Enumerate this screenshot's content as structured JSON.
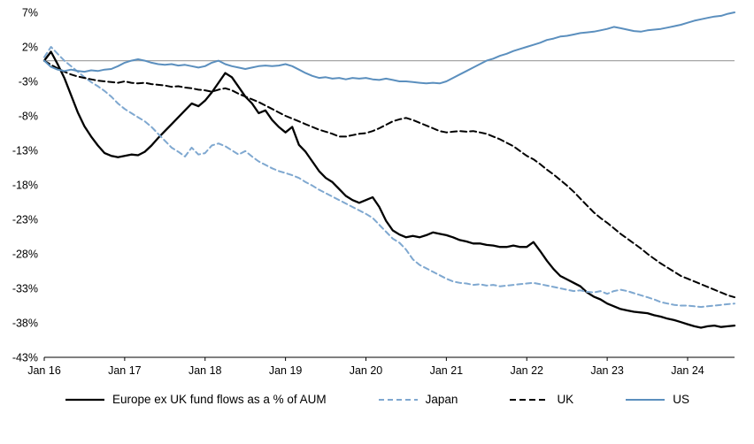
{
  "chart_data": {
    "type": "line",
    "title": "",
    "xlabel": "",
    "ylabel": "",
    "ylim": [
      -43,
      7
    ],
    "grid": "zero-line-only",
    "legend_position": "bottom",
    "zero_line_value": 0,
    "zero_line_color": "#a6a6a6",
    "axis_color": "#000000",
    "ytick_values": [
      7,
      2,
      -3,
      -8,
      -13,
      -18,
      -23,
      -28,
      -33,
      -38,
      -43
    ],
    "ytick_labels": [
      "7%",
      "2%",
      "-3%",
      "-8%",
      "-13%",
      "-18%",
      "-23%",
      "-28%",
      "-33%",
      "-38%",
      "-43%"
    ],
    "x_unit": "months since Jan 2016",
    "x_max": 103,
    "xtick_months": [
      0,
      12,
      24,
      36,
      48,
      60,
      72,
      84,
      96
    ],
    "xtick_labels": [
      "Jan 16",
      "Jan 17",
      "Jan 18",
      "Jan 19",
      "Jan 20",
      "Jan 21",
      "Jan 22",
      "Jan 23",
      "Jan 24"
    ],
    "series": [
      {
        "key": "europe-ex-uk",
        "name": "Europe ex UK fund flows as a % of AUM",
        "color": "#000000",
        "dash": null,
        "width": 2.3,
        "values": [
          0,
          1.3,
          -0.5,
          -2.5,
          -5,
          -7.5,
          -9.5,
          -11,
          -12.3,
          -13.4,
          -13.8,
          -14,
          -13.8,
          -13.6,
          -13.7,
          -13.2,
          -12.3,
          -11.2,
          -10.2,
          -9.2,
          -8.2,
          -7.2,
          -6.2,
          -6.6,
          -5.8,
          -4.6,
          -3.2,
          -1.8,
          -2.4,
          -3.8,
          -5.2,
          -6.2,
          -7.6,
          -7.2,
          -8.6,
          -9.6,
          -10.4,
          -9.6,
          -12.2,
          -13.2,
          -14.6,
          -16,
          -17,
          -17.6,
          -18.6,
          -19.6,
          -20.2,
          -20.6,
          -20.2,
          -19.8,
          -21.2,
          -23.2,
          -24.6,
          -25.2,
          -25.6,
          -25.4,
          -25.6,
          -25.3,
          -24.9,
          -25.1,
          -25.3,
          -25.6,
          -26,
          -26.2,
          -26.5,
          -26.5,
          -26.7,
          -26.8,
          -27,
          -27,
          -26.8,
          -27,
          -27,
          -26.3,
          -27.6,
          -29,
          -30.2,
          -31.2,
          -31.7,
          -32.2,
          -32.7,
          -33.6,
          -34.2,
          -34.6,
          -35.2,
          -35.6,
          -36,
          -36.2,
          -36.4,
          -36.5,
          -36.6,
          -36.9,
          -37.1,
          -37.4,
          -37.6,
          -37.9,
          -38.2,
          -38.5,
          -38.7,
          -38.5,
          -38.4,
          -38.6,
          -38.5,
          -38.4
        ]
      },
      {
        "key": "japan",
        "name": "Japan",
        "color": "#7fa8d0",
        "dash": "6,4",
        "width": 2,
        "values": [
          0.5,
          2,
          1,
          0,
          -0.8,
          -1.6,
          -2.4,
          -3.1,
          -3.7,
          -4.4,
          -5.2,
          -6.2,
          -7,
          -7.6,
          -8.2,
          -8.8,
          -9.6,
          -10.6,
          -11.6,
          -12.6,
          -13.2,
          -13.9,
          -12.6,
          -13.6,
          -13.4,
          -12.3,
          -12,
          -12.4,
          -13,
          -13.6,
          -13.1,
          -13.9,
          -14.6,
          -15.1,
          -15.6,
          -16,
          -16.3,
          -16.6,
          -17,
          -17.6,
          -18.1,
          -18.7,
          -19.2,
          -19.7,
          -20.2,
          -20.7,
          -21.2,
          -21.7,
          -22.2,
          -22.8,
          -23.8,
          -24.8,
          -25.8,
          -26.4,
          -27.4,
          -28.8,
          -29.6,
          -30.1,
          -30.6,
          -31.1,
          -31.6,
          -32,
          -32.2,
          -32.3,
          -32.5,
          -32.4,
          -32.6,
          -32.5,
          -32.7,
          -32.6,
          -32.5,
          -32.4,
          -32.3,
          -32.2,
          -32.4,
          -32.6,
          -32.8,
          -33,
          -33.2,
          -33.4,
          -33.3,
          -33.5,
          -33.6,
          -33.4,
          -33.8,
          -33.4,
          -33.2,
          -33.4,
          -33.7,
          -34,
          -34.3,
          -34.6,
          -35,
          -35.2,
          -35.4,
          -35.5,
          -35.5,
          -35.6,
          -35.7,
          -35.6,
          -35.5,
          -35.4,
          -35.3,
          -35.2
        ]
      },
      {
        "key": "uk",
        "name": "UK",
        "color": "#000000",
        "dash": "7,4",
        "width": 2,
        "values": [
          0,
          -0.6,
          -1.1,
          -1.6,
          -2,
          -2.3,
          -2.5,
          -2.7,
          -2.9,
          -3,
          -3.1,
          -3.2,
          -3,
          -3.2,
          -3.3,
          -3.2,
          -3.4,
          -3.5,
          -3.6,
          -3.8,
          -3.7,
          -3.9,
          -4,
          -4.2,
          -4.3,
          -4.5,
          -4.2,
          -4,
          -4.3,
          -4.8,
          -5.2,
          -5.6,
          -6,
          -6.5,
          -7,
          -7.5,
          -8,
          -8.4,
          -8.8,
          -9.2,
          -9.6,
          -10,
          -10.3,
          -10.6,
          -11,
          -11,
          -10.8,
          -10.6,
          -10.5,
          -10.2,
          -9.8,
          -9.3,
          -8.8,
          -8.5,
          -8.3,
          -8.6,
          -9,
          -9.4,
          -9.8,
          -10.2,
          -10.4,
          -10.3,
          -10.2,
          -10.3,
          -10.2,
          -10.4,
          -10.6,
          -11,
          -11.4,
          -11.9,
          -12.4,
          -13.1,
          -13.8,
          -14.3,
          -15,
          -15.8,
          -16.5,
          -17.3,
          -18.1,
          -19,
          -20,
          -21,
          -22,
          -22.8,
          -23.5,
          -24.3,
          -25.1,
          -25.8,
          -26.5,
          -27.2,
          -28,
          -28.7,
          -29.4,
          -30,
          -30.6,
          -31.2,
          -31.6,
          -32,
          -32.4,
          -32.8,
          -33.2,
          -33.6,
          -34,
          -34.3
        ]
      },
      {
        "key": "us",
        "name": "US",
        "color": "#5b8fbe",
        "dash": null,
        "width": 2,
        "values": [
          0,
          -0.9,
          -1.3,
          -1.5,
          -1.3,
          -1.5,
          -1.6,
          -1.4,
          -1.5,
          -1.3,
          -1.2,
          -0.8,
          -0.3,
          0,
          0.2,
          0,
          -0.3,
          -0.5,
          -0.6,
          -0.5,
          -0.7,
          -0.6,
          -0.8,
          -1,
          -0.8,
          -0.3,
          0,
          -0.5,
          -0.8,
          -1,
          -1.2,
          -1,
          -0.8,
          -0.7,
          -0.8,
          -0.7,
          -0.5,
          -0.8,
          -1.3,
          -1.8,
          -2.2,
          -2.5,
          -2.4,
          -2.6,
          -2.5,
          -2.7,
          -2.5,
          -2.6,
          -2.5,
          -2.7,
          -2.8,
          -2.6,
          -2.8,
          -3,
          -3,
          -3.1,
          -3.2,
          -3.3,
          -3.2,
          -3.3,
          -3,
          -2.5,
          -2,
          -1.5,
          -1,
          -0.5,
          0,
          0.3,
          0.7,
          1,
          1.4,
          1.7,
          2,
          2.3,
          2.6,
          3,
          3.2,
          3.5,
          3.6,
          3.8,
          4,
          4.1,
          4.2,
          4.4,
          4.6,
          4.9,
          4.7,
          4.5,
          4.3,
          4.2,
          4.4,
          4.5,
          4.6,
          4.8,
          5,
          5.2,
          5.5,
          5.8,
          6,
          6.2,
          6.4,
          6.5,
          6.8,
          7
        ]
      }
    ]
  },
  "legend": {
    "items": [
      {
        "label": "Europe ex UK fund flows as a % of AUM"
      },
      {
        "label": "Japan"
      },
      {
        "label": "UK"
      },
      {
        "label": "US"
      }
    ]
  }
}
